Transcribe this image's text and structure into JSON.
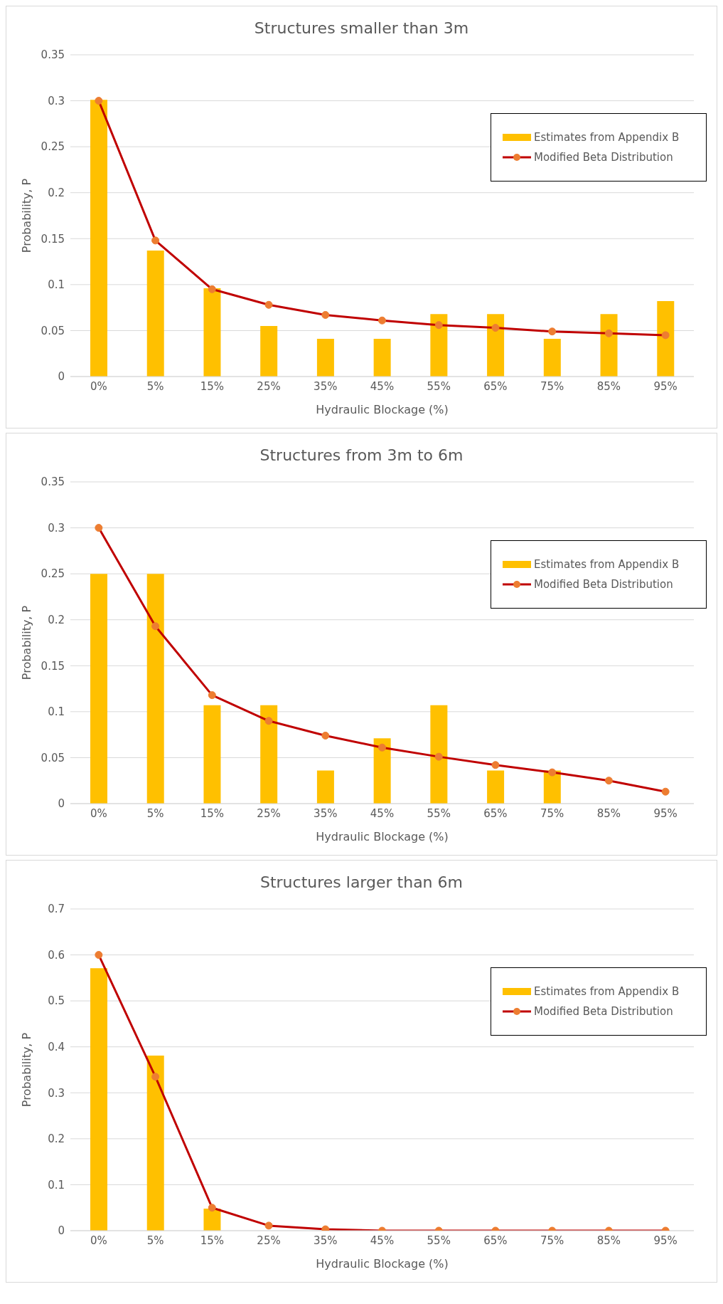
{
  "chart_data": [
    {
      "type": "bar",
      "title": "Structures smaller than 3m",
      "xlabel": "Hydraulic Blockage (%)",
      "ylabel": "Probability, P",
      "categories": [
        "0%",
        "5%",
        "15%",
        "25%",
        "35%",
        "45%",
        "55%",
        "65%",
        "75%",
        "85%",
        "95%"
      ],
      "series": [
        {
          "name": "Estimates from Appendix B",
          "color": "#ffc000",
          "values": [
            0.301,
            0.137,
            0.096,
            0.055,
            0.041,
            0.041,
            0.068,
            0.068,
            0.041,
            0.068,
            0.082
          ]
        },
        {
          "name": "Modified Beta Distribution",
          "type": "line",
          "color": "#c00000",
          "values": [
            0.3,
            0.148,
            0.095,
            0.078,
            0.067,
            0.061,
            0.056,
            0.053,
            0.049,
            0.047,
            0.045
          ]
        }
      ],
      "ylim": [
        0,
        0.35
      ],
      "yticks": [
        0,
        0.05,
        0.1,
        0.15,
        0.2,
        0.25,
        0.3,
        0.35
      ],
      "grid": "y",
      "legend": "right",
      "marker": "circle",
      "line_style": "solid"
    },
    {
      "type": "bar",
      "title": "Structures from 3m to 6m",
      "xlabel": "Hydraulic Blockage (%)",
      "ylabel": "Probability, P",
      "categories": [
        "0%",
        "5%",
        "15%",
        "25%",
        "35%",
        "45%",
        "55%",
        "65%",
        "75%",
        "85%",
        "95%"
      ],
      "series": [
        {
          "name": "Estimates from Appendix B",
          "color": "#ffc000",
          "values": [
            0.25,
            0.25,
            0.107,
            0.107,
            0.036,
            0.071,
            0.107,
            0.036,
            0.036,
            0,
            0
          ]
        },
        {
          "name": "Modified Beta Distribution",
          "type": "line",
          "color": "#c00000",
          "values": [
            0.3,
            0.193,
            0.118,
            0.09,
            0.074,
            0.061,
            0.051,
            0.042,
            0.034,
            0.025,
            0.013
          ]
        }
      ],
      "ylim": [
        0,
        0.35
      ],
      "yticks": [
        0,
        0.05,
        0.1,
        0.15,
        0.2,
        0.25,
        0.3,
        0.35
      ],
      "grid": "y",
      "legend": "right",
      "marker": "circle",
      "line_style": "solid"
    },
    {
      "type": "bar",
      "title": "Structures larger than 6m",
      "xlabel": "Hydraulic Blockage (%)",
      "ylabel": "Probability, P",
      "categories": [
        "0%",
        "5%",
        "15%",
        "25%",
        "35%",
        "45%",
        "55%",
        "65%",
        "75%",
        "85%",
        "95%"
      ],
      "series": [
        {
          "name": "Estimates from Appendix B",
          "color": "#ffc000",
          "values": [
            0.571,
            0.381,
            0.048,
            0,
            0,
            0,
            0,
            0,
            0,
            0,
            0
          ]
        },
        {
          "name": "Modified Beta Distribution",
          "type": "line",
          "color": "#c00000",
          "values": [
            0.6,
            0.335,
            0.05,
            0.011,
            0.003,
            0,
            0,
            0,
            0,
            0,
            0
          ]
        }
      ],
      "ylim": [
        0,
        0.7
      ],
      "yticks": [
        0,
        0.1,
        0.2,
        0.3,
        0.4,
        0.5,
        0.6,
        0.7
      ],
      "grid": "y",
      "legend": "right",
      "marker": "circle",
      "line_style": "solid"
    }
  ]
}
